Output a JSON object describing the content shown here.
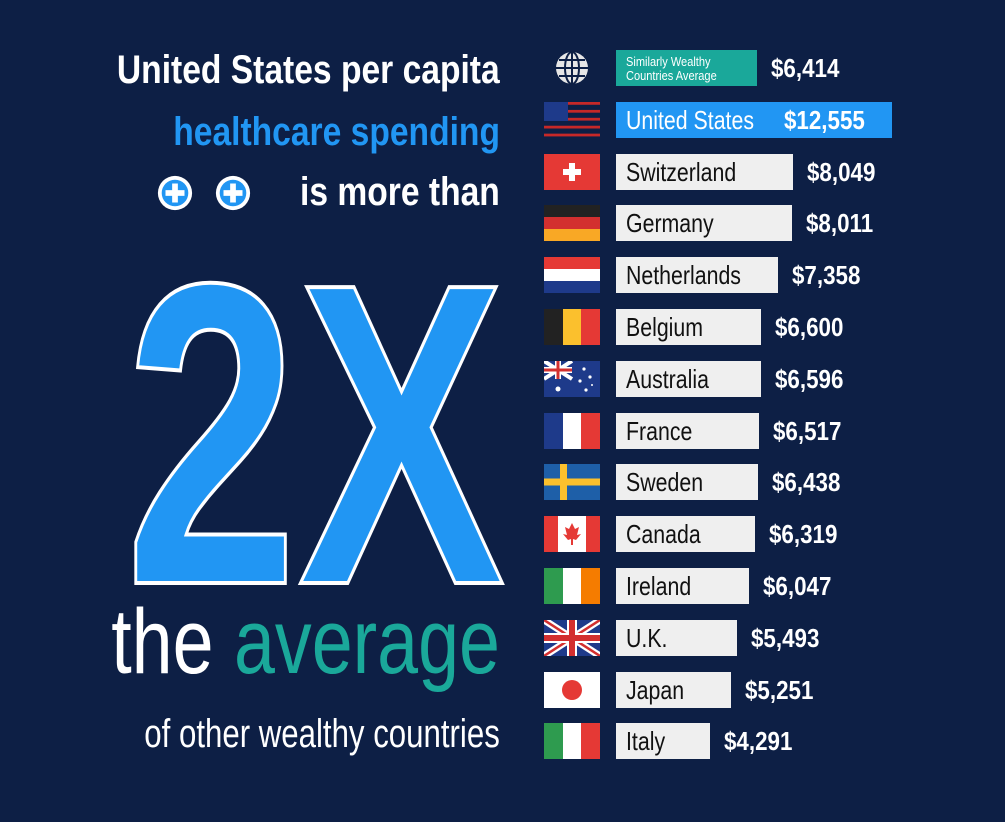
{
  "headline": {
    "line1": "United States per capita",
    "line2": "healthcare spending",
    "line3": "is more than",
    "big": "2X",
    "line4a": "the",
    "line4b": "average",
    "line5": "of other wealthy countries"
  },
  "colors": {
    "background": "#0d1f45",
    "accent_blue": "#2196f3",
    "accent_teal": "#1aa89a",
    "bar_default": "#efefef"
  },
  "chart_data": {
    "type": "bar",
    "orientation": "horizontal",
    "categories": [
      "Similarly Wealthy Countries Average",
      "United States",
      "Switzerland",
      "Germany",
      "Netherlands",
      "Belgium",
      "Australia",
      "France",
      "Sweden",
      "Canada",
      "Ireland",
      "U.K.",
      "Japan",
      "Italy"
    ],
    "values": [
      6414,
      12555,
      8049,
      8011,
      7358,
      6600,
      6596,
      6517,
      6438,
      6319,
      6047,
      5493,
      5251,
      4291
    ],
    "value_labels": [
      "$6,414",
      "$12,555",
      "$8,049",
      "$8,011",
      "$7,358",
      "$6,600",
      "$6,596",
      "$6,517",
      "$6,438",
      "$6,319",
      "$6,047",
      "$5,493",
      "$5,251",
      "$4,291"
    ],
    "icons": [
      "globe-icon",
      "flag-united-states-icon",
      "flag-switzerland-icon",
      "flag-germany-icon",
      "flag-netherlands-icon",
      "flag-belgium-icon",
      "flag-australia-icon",
      "flag-france-icon",
      "flag-sweden-icon",
      "flag-canada-icon",
      "flag-ireland-icon",
      "flag-uk-icon",
      "flag-japan-icon",
      "flag-italy-icon"
    ],
    "highlight": [
      "Similarly Wealthy Countries Average",
      "United States"
    ],
    "xlim": [
      0,
      12555
    ],
    "grid": false,
    "legend": "none"
  }
}
